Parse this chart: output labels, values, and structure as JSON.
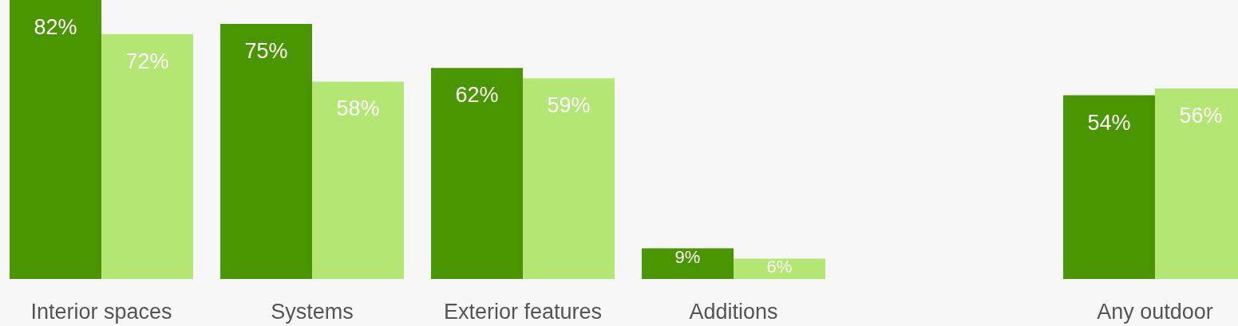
{
  "chart_data": {
    "type": "bar",
    "categories": [
      "Interior spaces",
      "Systems",
      "Exterior features",
      "Additions",
      null,
      "Any outdoor"
    ],
    "series": [
      {
        "color": "#4a9600",
        "values": [
          82,
          75,
          62,
          9,
          null,
          54
        ],
        "value_labels": [
          "82%",
          "75%",
          "62%",
          "9%",
          null,
          "54%"
        ]
      },
      {
        "color": "#b3e673",
        "values": [
          72,
          58,
          59,
          6,
          null,
          56
        ],
        "value_labels": [
          "72%",
          "58%",
          "59%",
          "6%",
          null,
          "56%"
        ]
      }
    ],
    "data_labels": true
  }
}
